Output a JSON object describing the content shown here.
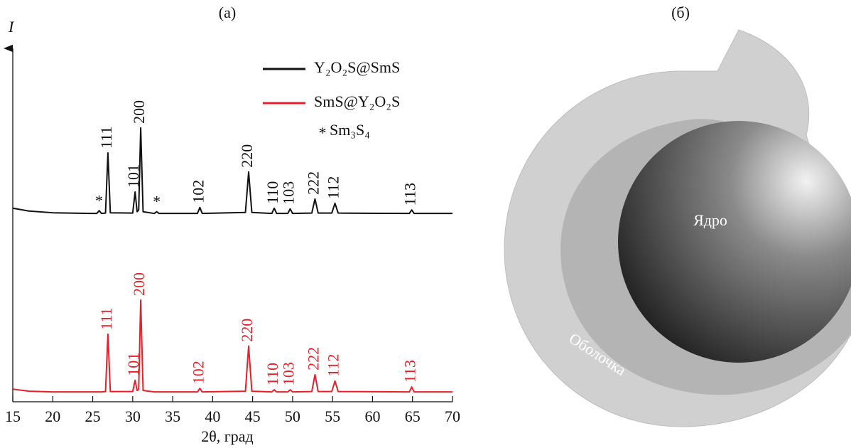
{
  "chart_data": {
    "type": "line",
    "panel_label": "(а)",
    "y_label": "I",
    "x_label": "2θ, град",
    "xlim": [
      15,
      70
    ],
    "xticks": [
      15,
      20,
      25,
      30,
      35,
      40,
      45,
      50,
      55,
      60,
      65,
      70
    ],
    "ylim": [
      0,
      100
    ],
    "x": [
      15,
      17,
      20,
      25,
      25.5,
      25.8,
      26.1,
      26.6,
      26.9,
      27.2,
      30.0,
      30.3,
      30.55,
      30.75,
      31.0,
      31.3,
      32.7,
      33.0,
      33.3,
      38.1,
      38.4,
      38.7,
      44.1,
      44.5,
      44.9,
      47.4,
      47.7,
      48.0,
      49.4,
      49.7,
      50.0,
      52.4,
      52.8,
      53.2,
      54.9,
      55.3,
      55.7,
      64.6,
      64.9,
      65.2,
      70
    ],
    "series": [
      {
        "name": "Y₂O₂S@SmS",
        "color": "#111111",
        "values": [
          55,
          54.2,
          53.7,
          53.5,
          53.5,
          54.3,
          53.5,
          53.6,
          70.7,
          53.7,
          53.6,
          59.6,
          54,
          54.5,
          77.8,
          54,
          53.5,
          54,
          53.5,
          53.5,
          55.2,
          53.5,
          53.8,
          65.3,
          53.8,
          53.5,
          55,
          53.5,
          53.5,
          54.8,
          53.5,
          53.6,
          57.6,
          53.6,
          53.6,
          56.4,
          53.6,
          53.5,
          54.5,
          53.5,
          53.5
        ],
        "peak_labels": [
          {
            "label": "111",
            "x": 26.9
          },
          {
            "label": "101",
            "x": 30.3
          },
          {
            "label": "200",
            "x": 31.0
          },
          {
            "label": "102",
            "x": 38.4
          },
          {
            "label": "220",
            "x": 44.5
          },
          {
            "label": "110",
            "x": 47.7
          },
          {
            "label": "103",
            "x": 49.7
          },
          {
            "label": "222",
            "x": 52.8
          },
          {
            "label": "112",
            "x": 55.3
          },
          {
            "label": "113",
            "x": 64.9
          }
        ],
        "impurity_marks": [
          25.8,
          33.0
        ]
      },
      {
        "name": "SmS@Y₂O₂S",
        "color": "#e4202a",
        "values": [
          3.6,
          3.0,
          2.8,
          2.8,
          2.8,
          2.8,
          2.8,
          2.9,
          19.2,
          2.9,
          2.9,
          6.1,
          3.2,
          3.5,
          28.9,
          3.2,
          2.8,
          2.8,
          2.8,
          2.8,
          3.8,
          2.8,
          3,
          15.8,
          3,
          2.8,
          3.4,
          2.8,
          2.8,
          3.4,
          2.8,
          2.9,
          7.7,
          2.9,
          2.9,
          5.9,
          2.9,
          2.8,
          4.2,
          2.8,
          2.8
        ],
        "peak_labels": [
          {
            "label": "111",
            "x": 26.9
          },
          {
            "label": "101",
            "x": 30.3
          },
          {
            "label": "200",
            "x": 31.0
          },
          {
            "label": "102",
            "x": 38.4
          },
          {
            "label": "220",
            "x": 44.5
          },
          {
            "label": "110",
            "x": 47.7
          },
          {
            "label": "103",
            "x": 49.7
          },
          {
            "label": "222",
            "x": 52.8
          },
          {
            "label": "112",
            "x": 55.3
          },
          {
            "label": "113",
            "x": 64.9
          }
        ]
      }
    ],
    "legend_note": {
      "symbol": "*",
      "text": "Sm₃S₄"
    }
  },
  "diagram": {
    "panel_label": "(б)",
    "core_label": "Ядро",
    "shell_label": "Оболочка"
  }
}
